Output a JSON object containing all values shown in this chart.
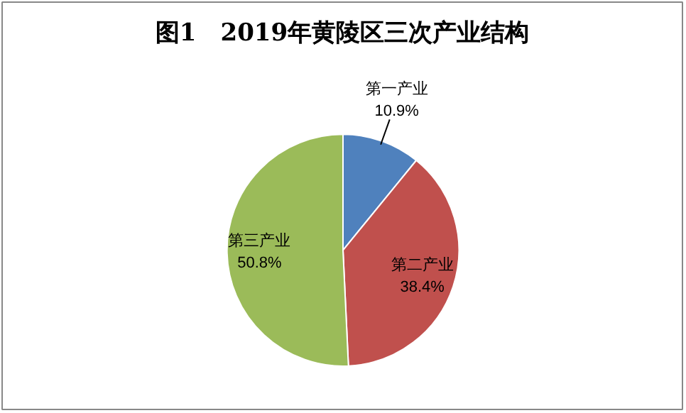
{
  "chart_data": {
    "type": "pie",
    "title": "图1　2019年黄陵区三次产业结构",
    "categories": [
      "第一产业",
      "第二产业",
      "第三产业"
    ],
    "values": [
      10.9,
      38.4,
      50.8
    ],
    "colors": [
      "#4f81bd",
      "#c0504d",
      "#9bbb59"
    ],
    "value_labels": [
      "10.9%",
      "38.4%",
      "50.8%"
    ],
    "legend": false
  }
}
